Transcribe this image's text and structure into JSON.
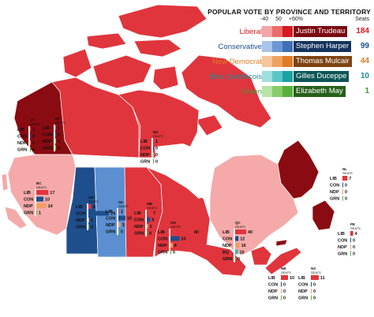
{
  "legend": {
    "title": "POPULAR VOTE BY PROVINCE AND TERRITORY",
    "scale": [
      "-40",
      "50",
      "+60%"
    ],
    "seats_header": "Seats",
    "parties": [
      {
        "party": "Liberal",
        "leader": "Justin Trudeau",
        "seats": "184",
        "color": "#d71920",
        "text_color": "#d71920",
        "shades": [
          "#f4a5a5",
          "#ec6b6b",
          "#d71920",
          "#a50f15",
          "#7a0a10"
        ],
        "leader_text": "#ffffff"
      },
      {
        "party": "Conservative",
        "leader": "Stephen Harper",
        "seats": "99",
        "color": "#1a4e8c",
        "text_color": "#1a4e8c",
        "shades": [
          "#a8c4ea",
          "#6b97d6",
          "#3f6fb5",
          "#234f8f",
          "#14335f"
        ],
        "leader_text": "#ffffff"
      },
      {
        "party": "New Democrat",
        "leader": "Thomas Mulcair",
        "seats": "44",
        "color": "#e07b27",
        "text_color": "#e07b27",
        "shades": [
          "#f6c69a",
          "#eea261",
          "#e07b27",
          "#b15d1a",
          "#7d4313"
        ],
        "leader_text": "#ffffff"
      },
      {
        "party": "Bloc Québécois",
        "leader": "Gilles Duceppe",
        "seats": "10",
        "color": "#1aa3a3",
        "text_color": "#1a8e9e",
        "shades": [
          "#9fdedf",
          "#5cc6c7",
          "#1aa3a3",
          "#137c7c",
          "#0c5656"
        ],
        "leader_text": "#ffffff"
      },
      {
        "party": "Green",
        "leader": "Elizabeth May",
        "seats": "1",
        "color": "#3d9b35",
        "text_color": "#3d9b35",
        "shades": [
          "#b9e3a6",
          "#86cc6b",
          "#56b13c",
          "#3d8a2a",
          "#27601a"
        ],
        "leader_text": "#ffffff"
      }
    ]
  },
  "colors": {
    "lib_dark": "#8a0b12",
    "lib_mid": "#e0353c",
    "lib_light": "#f28b8b",
    "lib_pale": "#f5a9a9",
    "con_dark": "#1f4e8c",
    "con_mid": "#5b8fd0",
    "ndp": "#f0a064",
    "bq": "#3fb5b5",
    "grn": "#56b13c",
    "water": "#ffffff",
    "border": "#ffffff"
  },
  "provinces": [
    {
      "code": "YT",
      "seats_label": "SEATS",
      "rows": [
        {
          "p": "LIB",
          "n": "1",
          "v": 1
        },
        {
          "p": "CON",
          "n": "0",
          "v": 0
        },
        {
          "p": "NDP",
          "n": "0",
          "v": 0
        },
        {
          "p": "GRN",
          "n": "0",
          "v": 0
        }
      ]
    },
    {
      "code": "NT",
      "seats_label": "SEATS",
      "rows": [
        {
          "p": "LIB",
          "n": "1",
          "v": 1
        },
        {
          "p": "CON",
          "n": "0",
          "v": 0
        },
        {
          "p": "NDP",
          "n": "0",
          "v": 0
        },
        {
          "p": "GRN",
          "n": "0",
          "v": 0
        }
      ]
    },
    {
      "code": "NU",
      "seats_label": "SEATS",
      "rows": [
        {
          "p": "LIB",
          "n": "1",
          "v": 1
        },
        {
          "p": "CON",
          "n": "0",
          "v": 0
        },
        {
          "p": "NDP",
          "n": "0",
          "v": 0
        },
        {
          "p": "GRN",
          "n": "0",
          "v": 0
        }
      ]
    },
    {
      "code": "BC",
      "seats_label": "SEATS",
      "rows": [
        {
          "p": "LIB",
          "n": "17",
          "v": 17
        },
        {
          "p": "CON",
          "n": "10",
          "v": 10
        },
        {
          "p": "NDP",
          "n": "14",
          "v": 14
        },
        {
          "p": "GRN",
          "n": "1",
          "v": 1
        }
      ]
    },
    {
      "code": "AB",
      "seats_label": "SEATS",
      "rows": [
        {
          "p": "LIB",
          "n": "4",
          "v": 4
        },
        {
          "p": "CON",
          "n": "29",
          "v": 29
        },
        {
          "p": "NDP",
          "n": "1",
          "v": 1
        },
        {
          "p": "GRN",
          "n": "0",
          "v": 0
        }
      ]
    },
    {
      "code": "SK",
      "seats_label": "SEATS",
      "rows": [
        {
          "p": "LIB",
          "n": "1",
          "v": 1
        },
        {
          "p": "CON",
          "n": "10",
          "v": 10
        },
        {
          "p": "NDP",
          "n": "3",
          "v": 3
        },
        {
          "p": "GRN",
          "n": "0",
          "v": 0
        }
      ]
    },
    {
      "code": "MB",
      "seats_label": "SEATS",
      "rows": [
        {
          "p": "LIB",
          "n": "7",
          "v": 7
        },
        {
          "p": "CON",
          "n": "5",
          "v": 5
        },
        {
          "p": "NDP",
          "n": "2",
          "v": 2
        },
        {
          "p": "GRN",
          "n": "0",
          "v": 0
        }
      ]
    },
    {
      "code": "ON",
      "seats_label": "SEATS",
      "rows": [
        {
          "p": "LIB",
          "n": "80",
          "v": 80
        },
        {
          "p": "CON",
          "n": "33",
          "v": 33
        },
        {
          "p": "NDP",
          "n": "8",
          "v": 8
        },
        {
          "p": "GRN",
          "n": "0",
          "v": 0
        }
      ]
    },
    {
      "code": "QC",
      "seats_label": "SEATS",
      "rows": [
        {
          "p": "LIB",
          "n": "40",
          "v": 40
        },
        {
          "p": "CON",
          "n": "12",
          "v": 12
        },
        {
          "p": "NDP",
          "n": "16",
          "v": 16
        },
        {
          "p": "BQ",
          "n": "10",
          "v": 10
        },
        {
          "p": "GRN",
          "n": "0",
          "v": 0
        }
      ]
    },
    {
      "code": "NL",
      "seats_label": "SEATS",
      "rows": [
        {
          "p": "LIB",
          "n": "7",
          "v": 7
        },
        {
          "p": "CON",
          "n": "0",
          "v": 0
        },
        {
          "p": "NDP",
          "n": "0",
          "v": 0
        },
        {
          "p": "GRN",
          "n": "0",
          "v": 0
        }
      ]
    },
    {
      "code": "PE",
      "seats_label": "SEATS",
      "rows": [
        {
          "p": "LIB",
          "n": "4",
          "v": 4
        },
        {
          "p": "CON",
          "n": "0",
          "v": 0
        },
        {
          "p": "NDP",
          "n": "0",
          "v": 0
        },
        {
          "p": "GRN",
          "n": "0",
          "v": 0
        }
      ]
    },
    {
      "code": "NS",
      "seats_label": "SEATS",
      "rows": [
        {
          "p": "LIB",
          "n": "11",
          "v": 11
        },
        {
          "p": "CON",
          "n": "0",
          "v": 0
        },
        {
          "p": "NDP",
          "n": "0",
          "v": 0
        },
        {
          "p": "GRN",
          "n": "0",
          "v": 0
        }
      ]
    },
    {
      "code": "NB",
      "seats_label": "SEATS",
      "rows": [
        {
          "p": "LIB",
          "n": "10",
          "v": 10
        },
        {
          "p": "CON",
          "n": "0",
          "v": 0
        },
        {
          "p": "NDP",
          "n": "0",
          "v": 0
        },
        {
          "p": "GRN",
          "n": "0",
          "v": 0
        }
      ]
    }
  ]
}
